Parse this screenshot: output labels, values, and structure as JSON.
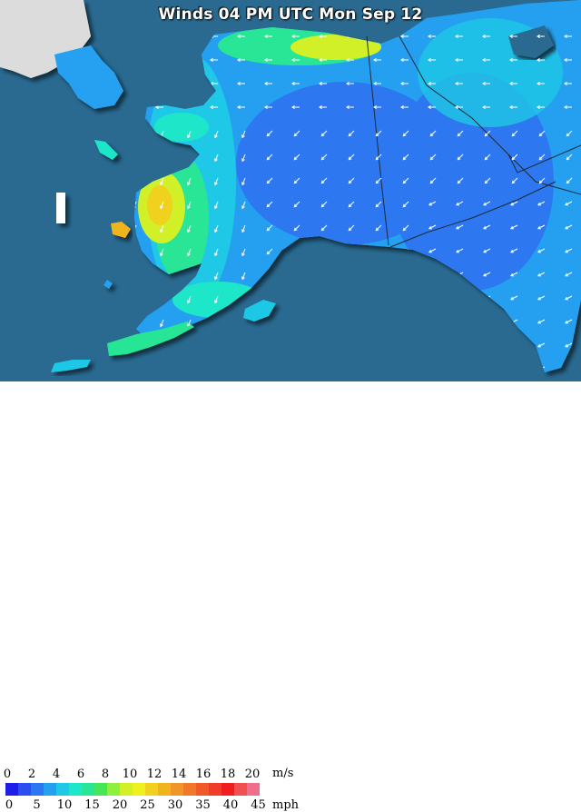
{
  "title": "Winds 04 PM UTC Mon Sep 12",
  "legend": {
    "ms_ticks": [
      "0",
      "2",
      "4",
      "6",
      "8",
      "10",
      "12",
      "14",
      "16",
      "18",
      "20"
    ],
    "ms_unit": "m/s",
    "mph_ticks": [
      "0",
      "5",
      "10",
      "15",
      "20",
      "25",
      "30",
      "35",
      "40",
      "45"
    ],
    "mph_unit": "mph",
    "colors": [
      "#1e1ee6",
      "#2a4ef0",
      "#2d78f0",
      "#25a0f0",
      "#1ec8e6",
      "#1ee6c8",
      "#28e696",
      "#46e65a",
      "#8cf03c",
      "#d2f028",
      "#f0f01e",
      "#f0d21e",
      "#f0b41e",
      "#f09628",
      "#f07828",
      "#f05a28",
      "#f03c28",
      "#f01e1e",
      "#f05050",
      "#f06e8c"
    ]
  },
  "colors": {
    "ocean": "#2a6a90",
    "land_calm": "#2d78f0",
    "land_light": "#25a0f0",
    "land_moderate": "#1ec8e6",
    "land_breezy": "#28e696",
    "land_windy": "#d2f028",
    "land_strong": "#f0b41e",
    "border": "#1a2a3a",
    "arrow": "#ffffff"
  }
}
